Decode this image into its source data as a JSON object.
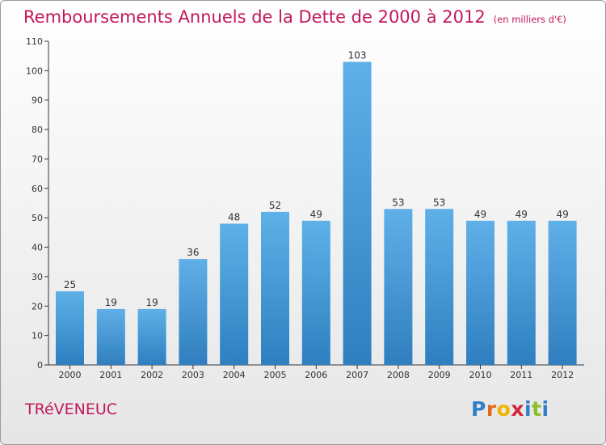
{
  "title": "Remboursements Annuels de la Dette de 2000 à 2012",
  "unit_note": "(en milliers d'€)",
  "commune": "TRéVENEUC",
  "logo": {
    "letters": [
      "P",
      "r",
      "o",
      "x",
      "i",
      "t",
      "i"
    ],
    "colors": [
      "#2f80c8",
      "#e06a1b",
      "#f0b400",
      "#d5233c",
      "#2f80c8",
      "#8bbf2b",
      "#2f80c8"
    ]
  },
  "colors": {
    "bar_top": "#5fb0e8",
    "bar_bottom": "#2f7fc0",
    "title": "#c2185b"
  },
  "chart_data": {
    "type": "bar",
    "categories": [
      "2000",
      "2001",
      "2002",
      "2003",
      "2004",
      "2005",
      "2006",
      "2007",
      "2008",
      "2009",
      "2010",
      "2011",
      "2012"
    ],
    "values": [
      25,
      19,
      19,
      36,
      48,
      52,
      49,
      103,
      53,
      53,
      49,
      49,
      49
    ],
    "data_labels": [
      "25",
      "19",
      "19",
      "36",
      "48",
      "52",
      "49",
      "103",
      "53",
      "53",
      "49",
      "49",
      "49"
    ],
    "ylim": [
      0,
      110
    ],
    "yticks": [
      0,
      10,
      20,
      30,
      40,
      50,
      60,
      70,
      80,
      90,
      100,
      110
    ],
    "grid": false,
    "title": "Remboursements Annuels de la Dette de 2000 à 2012",
    "xlabel": "",
    "ylabel": ""
  }
}
